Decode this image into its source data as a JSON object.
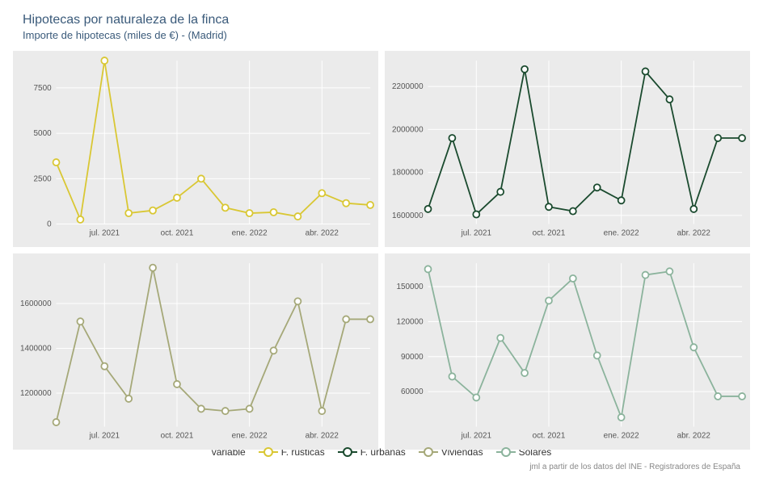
{
  "title": "Hipotecas por naturaleza de la finca",
  "subtitle": "Importe de hipotecas (miles de €) - (Madrid)",
  "caption": "jml a partir de los datos del INE - Registradores de España",
  "legend_title": "variable",
  "background_color": "#ffffff",
  "panel_bg": "#ebebeb",
  "grid_color": "#ffffff",
  "axis_text_color": "#555555",
  "title_color": "#3a5a7a",
  "x_labels": [
    "jul. 2021",
    "oct. 2021",
    "ene. 2022",
    "abr. 2022"
  ],
  "x_tick_indices": [
    2,
    5,
    8,
    11
  ],
  "n_points": 14,
  "series": [
    {
      "name": "F. rústicas",
      "color": "#d9c733",
      "ylim": [
        0,
        9000
      ],
      "yticks": [
        0,
        2500,
        5000,
        7500
      ],
      "values": [
        3400,
        250,
        9000,
        600,
        750,
        1450,
        2500,
        900,
        600,
        650,
        420,
        1700,
        1150,
        1050
      ]
    },
    {
      "name": "F. urbanas",
      "color": "#1a4a2e",
      "ylim": [
        1560000,
        2320000
      ],
      "yticks": [
        1600000,
        1800000,
        2000000,
        2200000
      ],
      "values": [
        1630000,
        1960000,
        1605000,
        1710000,
        2280000,
        1640000,
        1620000,
        1730000,
        1670000,
        2270000,
        2140000,
        1630000,
        1960000,
        1960000
      ]
    },
    {
      "name": "Viviendas",
      "color": "#a5a878",
      "ylim": [
        1050000,
        1780000
      ],
      "yticks": [
        1200000,
        1400000,
        1600000
      ],
      "values": [
        1070000,
        1520000,
        1320000,
        1175000,
        1760000,
        1240000,
        1130000,
        1120000,
        1130000,
        1390000,
        1610000,
        1120000,
        1530000,
        1530000
      ]
    },
    {
      "name": "Solares",
      "color": "#8bb39c",
      "ylim": [
        30000,
        170000
      ],
      "yticks": [
        60000,
        90000,
        120000,
        150000
      ],
      "values": [
        165000,
        73000,
        55000,
        106000,
        76000,
        138000,
        157000,
        91000,
        38000,
        160000,
        163000,
        98000,
        56000,
        56000
      ]
    }
  ]
}
